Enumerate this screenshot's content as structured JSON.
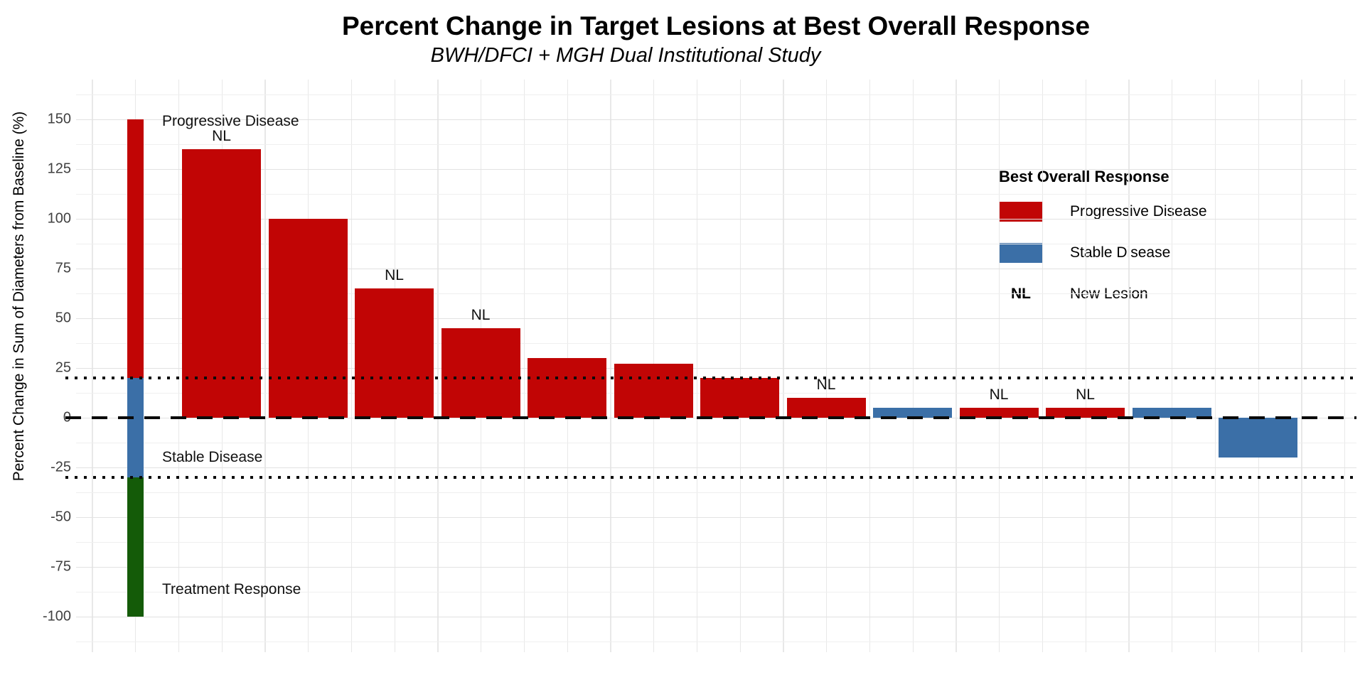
{
  "chart": {
    "title": "Percent Change in Target Lesions at Best Overall Response",
    "subtitle": "BWH/DFCI + MGH Dual Institutional Study",
    "ylabel": "Percent Change in Sum of Diameters from Baseline (%)"
  },
  "chart_data": {
    "type": "bar",
    "subtype": "waterfall",
    "title": "Percent Change in Target Lesions at Best Overall Response",
    "subtitle": "BWH/DFCI + MGH Dual Institutional Study",
    "xlabel": "",
    "ylabel": "Percent Change in Sum of Diameters from Baseline (%)",
    "ylim": [
      -112.5,
      162.5
    ],
    "yticks": [
      150,
      125,
      100,
      75,
      50,
      25,
      0,
      -25,
      -50,
      -75,
      -100
    ],
    "grid": "on",
    "x_axis_labels": "none",
    "legend_position": "inside-top-right",
    "bars": [
      {
        "patient": 1,
        "value": 135,
        "response": "Progressive Disease",
        "new_lesion": true
      },
      {
        "patient": 2,
        "value": 100,
        "response": "Progressive Disease",
        "new_lesion": false
      },
      {
        "patient": 3,
        "value": 65,
        "response": "Progressive Disease",
        "new_lesion": true
      },
      {
        "patient": 4,
        "value": 45,
        "response": "Progressive Disease",
        "new_lesion": true
      },
      {
        "patient": 5,
        "value": 30,
        "response": "Progressive Disease",
        "new_lesion": false
      },
      {
        "patient": 6,
        "value": 27,
        "response": "Progressive Disease",
        "new_lesion": false
      },
      {
        "patient": 7,
        "value": 20,
        "response": "Progressive Disease",
        "new_lesion": false
      },
      {
        "patient": 8,
        "value": 10,
        "response": "Progressive Disease",
        "new_lesion": true
      },
      {
        "patient": 9,
        "value": 5,
        "response": "Stable Disease",
        "new_lesion": false
      },
      {
        "patient": 10,
        "value": 5,
        "response": "Progressive Disease",
        "new_lesion": true
      },
      {
        "patient": 11,
        "value": 5,
        "response": "Progressive Disease",
        "new_lesion": true
      },
      {
        "patient": 12,
        "value": 5,
        "response": "Stable Disease",
        "new_lesion": false
      },
      {
        "patient": 13,
        "value": -20,
        "response": "Stable Disease",
        "new_lesion": false
      }
    ],
    "reference_bar_segments": [
      {
        "from": 150,
        "to": 20,
        "zone": "progressive"
      },
      {
        "from": 20,
        "to": -30,
        "zone": "stable"
      },
      {
        "from": -30,
        "to": -100,
        "zone": "response"
      }
    ],
    "reference_lines": [
      {
        "y": 20,
        "style": "dotted"
      },
      {
        "y": 0,
        "style": "dashed"
      },
      {
        "y": -30,
        "style": "dotted"
      }
    ],
    "zone_labels": [
      {
        "text": "Progressive Disease",
        "y": 149
      },
      {
        "text": "Stable Disease",
        "y": -20
      },
      {
        "text": "Treatment Response",
        "y": -86.5
      }
    ],
    "new_lesion_marker": "NL"
  },
  "legend": {
    "title": "Best Overall Response",
    "items": [
      {
        "swatch": "progressive",
        "label": "Progressive Disease"
      },
      {
        "swatch": "stable",
        "label": "Stable Disease"
      },
      {
        "symbol": "NL",
        "label": "New Lesion"
      }
    ]
  },
  "colors": {
    "progressive": "#c10505",
    "stable": "#3b6fa7",
    "response": "#145b08",
    "grid_major": "#e2e2e2",
    "grid_minor": "#efefef",
    "line_black": "#0a0a0a"
  }
}
